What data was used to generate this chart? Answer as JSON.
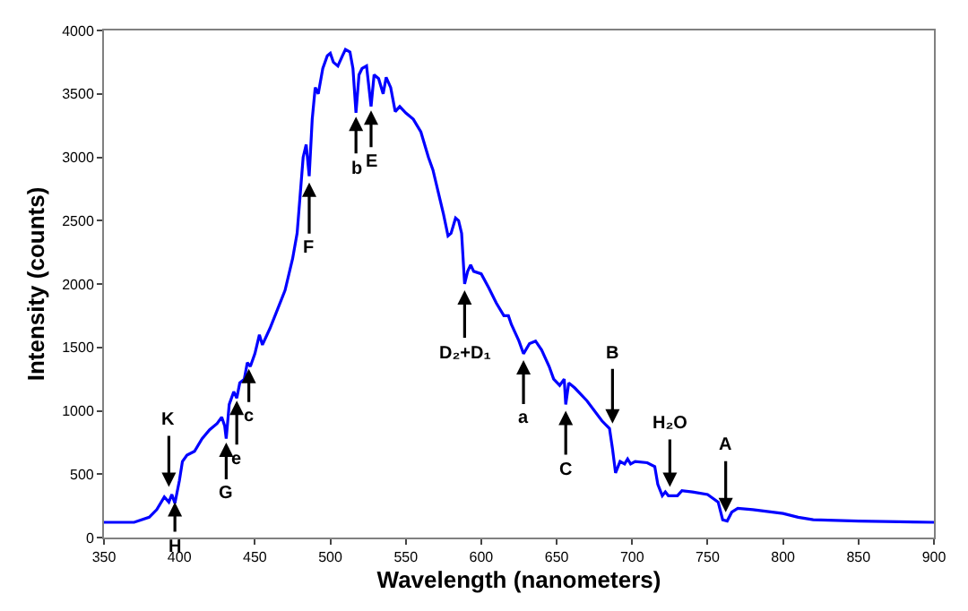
{
  "chart_data": {
    "type": "line",
    "xlabel": "Wavelength (nanometers)",
    "ylabel": "Intensity (counts)",
    "xlim": [
      350,
      900
    ],
    "xticks": [
      350,
      400,
      450,
      500,
      550,
      600,
      650,
      700,
      750,
      800,
      850,
      900
    ],
    "ylim": [
      0,
      4000
    ],
    "yticks": [
      0,
      500,
      1000,
      1500,
      2000,
      2500,
      3000,
      3500,
      4000
    ],
    "marker": "none",
    "line_style": "solid",
    "series": [
      {
        "color": "#0000ff",
        "x": [
          350,
          370,
          380,
          385,
          390,
          393,
          395,
          397,
          400,
          402,
          405,
          410,
          415,
          420,
          425,
          428,
          430,
          431,
          433,
          436,
          438,
          440,
          443,
          445,
          447,
          450,
          453,
          455,
          460,
          465,
          470,
          475,
          478,
          480,
          482,
          484,
          486,
          488,
          490,
          492,
          495,
          498,
          500,
          502,
          505,
          508,
          510,
          513,
          515,
          517,
          519,
          521,
          524,
          527,
          529,
          532,
          535,
          537,
          540,
          543,
          546,
          550,
          555,
          560,
          565,
          568,
          572,
          575,
          578,
          580,
          583,
          585,
          587,
          589,
          591,
          593,
          595,
          600,
          605,
          610,
          615,
          618,
          620,
          625,
          628,
          632,
          636,
          640,
          645,
          648,
          652,
          655,
          656,
          658,
          662,
          670,
          680,
          685,
          687,
          689,
          692,
          695,
          697,
          699,
          702,
          710,
          715,
          717,
          720,
          722,
          724,
          730,
          733,
          740,
          750,
          757,
          760,
          763,
          766,
          770,
          780,
          800,
          810,
          820,
          850,
          900
        ],
        "values": [
          120,
          120,
          160,
          220,
          320,
          280,
          340,
          270,
          450,
          600,
          650,
          680,
          780,
          850,
          900,
          950,
          880,
          780,
          1050,
          1150,
          1100,
          1220,
          1250,
          1380,
          1350,
          1450,
          1600,
          1520,
          1650,
          1800,
          1950,
          2200,
          2400,
          2700,
          3000,
          3100,
          2850,
          3300,
          3550,
          3500,
          3700,
          3800,
          3820,
          3750,
          3720,
          3800,
          3850,
          3830,
          3700,
          3350,
          3650,
          3700,
          3720,
          3400,
          3650,
          3620,
          3500,
          3630,
          3550,
          3360,
          3400,
          3350,
          3300,
          3200,
          3000,
          2900,
          2700,
          2550,
          2380,
          2400,
          2520,
          2500,
          2400,
          2000,
          2100,
          2150,
          2100,
          2080,
          1970,
          1850,
          1750,
          1750,
          1680,
          1550,
          1450,
          1530,
          1550,
          1480,
          1350,
          1250,
          1200,
          1250,
          1050,
          1220,
          1180,
          1080,
          920,
          860,
          700,
          510,
          600,
          580,
          620,
          580,
          600,
          590,
          560,
          420,
          330,
          360,
          330,
          330,
          370,
          360,
          340,
          280,
          140,
          130,
          200,
          230,
          220,
          190,
          160,
          140,
          130,
          120
        ]
      }
    ],
    "annotations": [
      {
        "text": "K",
        "x": 393,
        "y": 400
      },
      {
        "text": "H",
        "x": 397,
        "y": 280
      },
      {
        "text": "G",
        "x": 431,
        "y": 750
      },
      {
        "text": "e",
        "x": 438,
        "y": 1080
      },
      {
        "text": "c",
        "x": 446,
        "y": 1330
      },
      {
        "text": "F",
        "x": 486,
        "y": 2800
      },
      {
        "text": "b",
        "x": 517,
        "y": 3320
      },
      {
        "text": "E",
        "x": 527,
        "y": 3370
      },
      {
        "text": "D₂+D₁",
        "x": 589,
        "y": 1950
      },
      {
        "text": "a",
        "x": 628,
        "y": 1400
      },
      {
        "text": "C",
        "x": 656,
        "y": 1000
      },
      {
        "text": "B",
        "x": 687,
        "y": 900
      },
      {
        "text": "H₂O",
        "x": 725,
        "y": 400
      },
      {
        "text": "A",
        "x": 762,
        "y": 200
      }
    ]
  }
}
